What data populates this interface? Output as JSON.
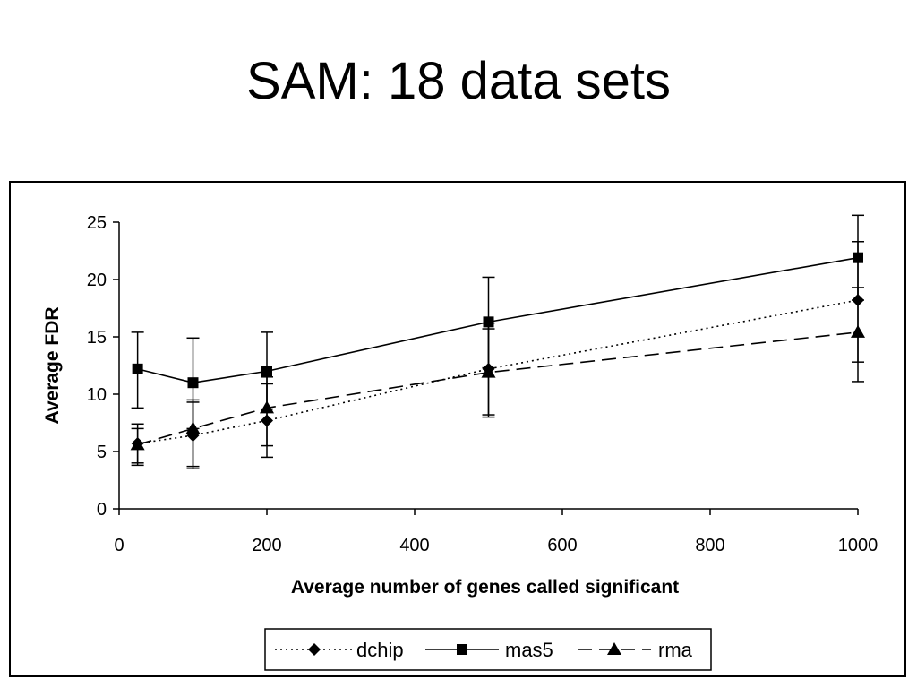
{
  "slide": {
    "title": "SAM: 18 data sets"
  },
  "chart_data": {
    "type": "line",
    "xlabel": "Average number of genes called significant",
    "ylabel": "Average FDR",
    "xlim": [
      0,
      1000
    ],
    "ylim": [
      0,
      25
    ],
    "xticks": [
      0,
      200,
      400,
      600,
      800,
      1000
    ],
    "yticks": [
      0,
      5,
      10,
      15,
      20,
      25
    ],
    "grid": false,
    "legend_position": "bottom",
    "series": [
      {
        "name": "dchip",
        "line_style": "dotted",
        "marker": "diamond",
        "x": [
          25,
          100,
          200,
          500,
          1000
        ],
        "y": [
          5.7,
          6.4,
          7.7,
          12.2,
          18.2
        ],
        "err_low": [
          4.0,
          3.7,
          5.5,
          8.2,
          12.8
        ],
        "err_high": [
          7.4,
          9.3,
          10.9,
          16.2,
          23.3
        ]
      },
      {
        "name": "mas5",
        "line_style": "solid",
        "marker": "square",
        "x": [
          25,
          100,
          200,
          500,
          1000
        ],
        "y": [
          12.2,
          11.0,
          12.0,
          16.3,
          21.9
        ],
        "err_low": [
          8.8,
          7.0,
          8.7,
          12.3,
          18.2
        ],
        "err_high": [
          15.4,
          14.9,
          15.4,
          20.2,
          25.6
        ]
      },
      {
        "name": "rma",
        "line_style": "dashed",
        "marker": "triangle",
        "x": [
          25,
          100,
          200,
          500,
          1000
        ],
        "y": [
          5.6,
          7.0,
          8.8,
          11.9,
          15.4
        ],
        "err_low": [
          3.8,
          3.5,
          4.5,
          8.0,
          11.1
        ],
        "err_high": [
          7.0,
          9.5,
          11.5,
          15.7,
          19.3
        ]
      }
    ]
  },
  "colors": {
    "ink": "#000000",
    "background": "#ffffff"
  }
}
